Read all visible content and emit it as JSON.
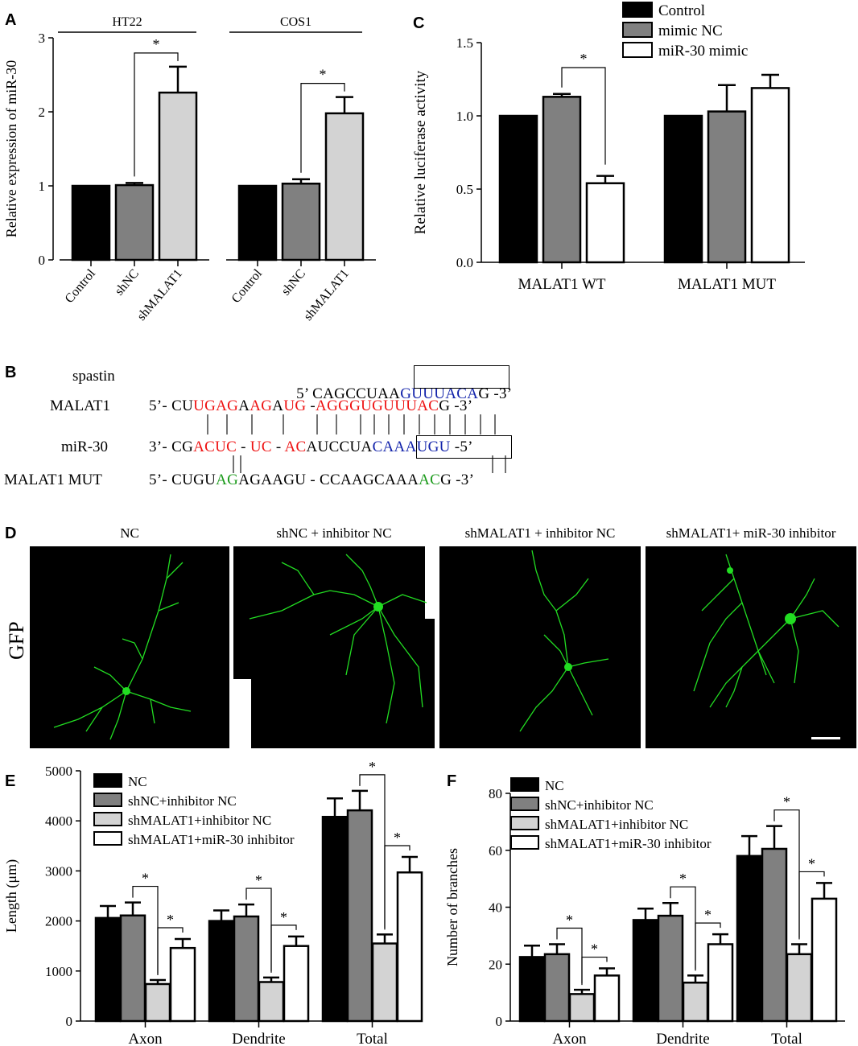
{
  "panels": {
    "A": "A",
    "B": "B",
    "C": "C",
    "D": "D",
    "E": "E",
    "F": "F"
  },
  "chart_data": [
    {
      "id": "A",
      "type": "bar",
      "ylabel": "Relative expression of miR-30",
      "ylim": [
        0,
        3
      ],
      "yticks": [
        0,
        1,
        2,
        3
      ],
      "groups": [
        {
          "name": "HT22",
          "categories": [
            "Control",
            "shNC",
            "shMALAT1"
          ],
          "values": [
            1.0,
            1.01,
            2.26
          ],
          "errors": [
            0,
            0.03,
            0.35
          ]
        },
        {
          "name": "COS1",
          "categories": [
            "Control",
            "shNC",
            "shMALAT1"
          ],
          "values": [
            1.0,
            1.03,
            1.98
          ],
          "errors": [
            0,
            0.06,
            0.22
          ]
        }
      ],
      "significance": [
        {
          "group": 0,
          "from": 1,
          "to": 2,
          "label": "*"
        },
        {
          "group": 1,
          "from": 1,
          "to": 2,
          "label": "*"
        }
      ],
      "colors": [
        "#000000",
        "#808080",
        "#d3d3d3"
      ]
    },
    {
      "id": "C",
      "type": "bar",
      "ylabel": "Relative luciferase activity",
      "ylim": [
        0,
        1.5
      ],
      "yticks": [
        "0.0",
        "0.5",
        "1.0",
        "1.5"
      ],
      "categories": [
        "MALAT1 WT",
        "MALAT1 MUT"
      ],
      "series": [
        {
          "name": "Control",
          "values": [
            1.0,
            1.0
          ],
          "errors": [
            0,
            0
          ]
        },
        {
          "name": "mimic NC",
          "values": [
            1.13,
            1.03
          ],
          "errors": [
            0.02,
            0.18
          ]
        },
        {
          "name": "miR-30 mimic",
          "values": [
            0.54,
            1.19
          ],
          "errors": [
            0.05,
            0.09
          ]
        }
      ],
      "significance": [
        {
          "category": 0,
          "from": 1,
          "to": 2,
          "label": "*"
        }
      ],
      "colors": [
        "#000000",
        "#808080",
        "#ffffff"
      ]
    },
    {
      "id": "E",
      "type": "bar",
      "ylabel": "Length (μm)",
      "ylim": [
        0,
        5000
      ],
      "yticks": [
        0,
        1000,
        2000,
        3000,
        4000,
        5000
      ],
      "categories": [
        "Axon",
        "Dendrite",
        "Total"
      ],
      "series": [
        {
          "name": "NC",
          "values": [
            2060,
            2000,
            4080
          ],
          "errors": [
            240,
            210,
            370
          ]
        },
        {
          "name": "shNC+inhibitor NC",
          "values": [
            2110,
            2090,
            4210
          ],
          "errors": [
            260,
            240,
            390
          ]
        },
        {
          "name": "shMALAT1+inhibitor NC",
          "values": [
            740,
            780,
            1550
          ],
          "errors": [
            80,
            90,
            180
          ]
        },
        {
          "name": "shMALAT1+miR-30 inhibitor",
          "values": [
            1460,
            1500,
            2970
          ],
          "errors": [
            180,
            190,
            310
          ]
        }
      ],
      "significance": [
        {
          "category": 0,
          "from": 1,
          "to": 2,
          "label": "*"
        },
        {
          "category": 0,
          "from": 2,
          "to": 3,
          "label": "*"
        },
        {
          "category": 1,
          "from": 1,
          "to": 2,
          "label": "*"
        },
        {
          "category": 1,
          "from": 2,
          "to": 3,
          "label": "*"
        },
        {
          "category": 2,
          "from": 1,
          "to": 2,
          "label": "*"
        },
        {
          "category": 2,
          "from": 2,
          "to": 3,
          "label": "*"
        }
      ],
      "colors": [
        "#000000",
        "#808080",
        "#d3d3d3",
        "#ffffff"
      ]
    },
    {
      "id": "F",
      "type": "bar",
      "ylabel": "Number of branches",
      "ylim": [
        0,
        80
      ],
      "yticks": [
        0,
        20,
        40,
        60,
        80
      ],
      "categories": [
        "Axon",
        "Dendrite",
        "Total"
      ],
      "series": [
        {
          "name": "NC",
          "values": [
            22.5,
            35.5,
            58
          ],
          "errors": [
            4,
            4,
            7
          ]
        },
        {
          "name": "shNC+inhibitor NC",
          "values": [
            23.5,
            37,
            60.5
          ],
          "errors": [
            3.5,
            4.5,
            8
          ]
        },
        {
          "name": "shMALAT1+inhibitor NC",
          "values": [
            9.5,
            13.5,
            23.5
          ],
          "errors": [
            1.5,
            2.5,
            3.5
          ]
        },
        {
          "name": "shMALAT1+miR-30 inhibitor",
          "values": [
            16,
            27,
            43
          ],
          "errors": [
            2.5,
            3.5,
            5.5
          ]
        }
      ],
      "significance": [
        {
          "category": 0,
          "from": 1,
          "to": 2,
          "label": "*"
        },
        {
          "category": 0,
          "from": 2,
          "to": 3,
          "label": "*"
        },
        {
          "category": 1,
          "from": 1,
          "to": 2,
          "label": "*"
        },
        {
          "category": 1,
          "from": 2,
          "to": 3,
          "label": "*"
        },
        {
          "category": 2,
          "from": 1,
          "to": 2,
          "label": "*"
        },
        {
          "category": 2,
          "from": 2,
          "to": 3,
          "label": "*"
        }
      ],
      "colors": [
        "#000000",
        "#808080",
        "#d3d3d3",
        "#ffffff"
      ]
    }
  ],
  "sequence_panel": {
    "labels": [
      "spastin",
      "MALAT1",
      "miR-30",
      "MALAT1 MUT"
    ],
    "spastin": {
      "prefix": "5’ CAGCCUAA",
      "boxed": "GUUUACA",
      "suffix": "G -3’"
    },
    "malat1": [
      {
        "t": "5’- CU",
        "c": "black"
      },
      {
        "t": "UGAG",
        "c": "red"
      },
      {
        "t": "A",
        "c": "black"
      },
      {
        "t": "AG",
        "c": "red"
      },
      {
        "t": "A",
        "c": "black"
      },
      {
        "t": "UG",
        "c": "red"
      },
      {
        "t": " -",
        "c": "black"
      },
      {
        "t": "AGGGUGUUUAC",
        "c": "red"
      },
      {
        "t": "G -3’",
        "c": "black"
      }
    ],
    "mir30": [
      {
        "t": "3’- CG",
        "c": "black"
      },
      {
        "t": "ACUC",
        "c": "red"
      },
      {
        "t": " - ",
        "c": "black"
      },
      {
        "t": "UC",
        "c": "red"
      },
      {
        "t": " - ",
        "c": "black"
      },
      {
        "t": "AC",
        "c": "red"
      },
      {
        "t": "AUCCUA",
        "c": "black"
      },
      {
        "t": "CAAAUGU",
        "c": "blue"
      },
      {
        "t": " -5’",
        "c": "black"
      }
    ],
    "mut": [
      {
        "t": "5’- CUGU",
        "c": "black"
      },
      {
        "t": "AG",
        "c": "green"
      },
      {
        "t": "AGAAGU - CCAAGCAAA",
        "c": "black"
      },
      {
        "t": "AC",
        "c": "green"
      },
      {
        "t": "G -3’",
        "c": "black"
      }
    ]
  },
  "microscopy": {
    "row_label": "GFP",
    "titles": [
      "NC",
      "shNC + inhibitor NC",
      "shMALAT1 + inhibitor NC",
      "shMALAT1+ miR-30 inhibitor"
    ],
    "neuron_color": "#22dd22"
  }
}
